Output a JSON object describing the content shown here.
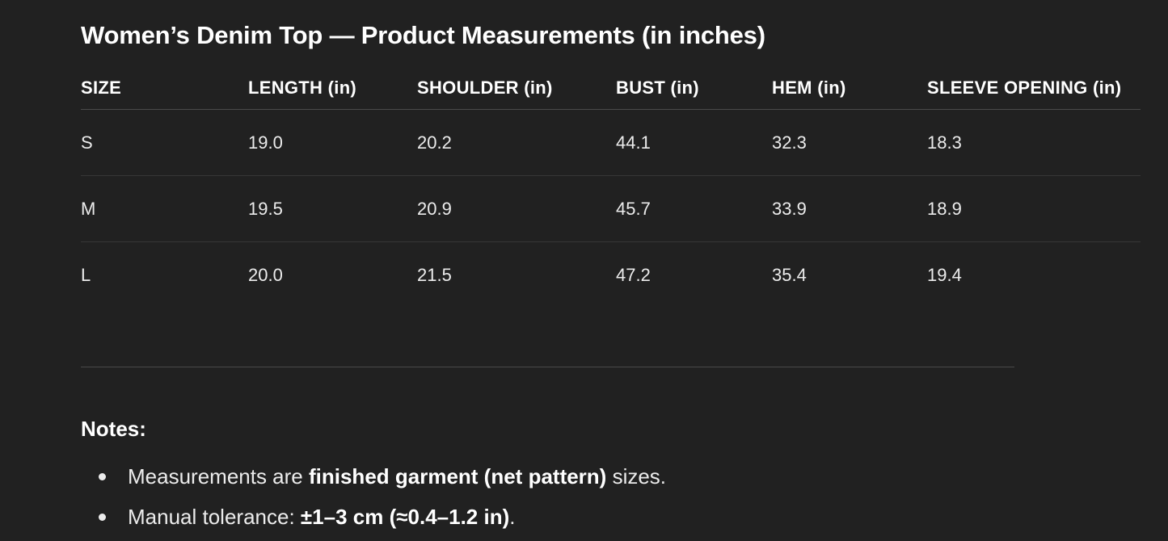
{
  "title": "Women’s Denim Top — Product Measurements (in inches)",
  "table": {
    "headers": [
      "SIZE",
      "LENGTH (in)",
      "SHOULDER (in)",
      "BUST (in)",
      "HEM (in)",
      "SLEEVE OPENING (in)"
    ],
    "rows": [
      [
        "S",
        "19.0",
        "20.2",
        "44.1",
        "32.3",
        "18.3"
      ],
      [
        "M",
        "19.5",
        "20.9",
        "45.7",
        "33.9",
        "18.9"
      ],
      [
        "L",
        "20.0",
        "21.5",
        "47.2",
        "35.4",
        "19.4"
      ]
    ]
  },
  "notes": {
    "heading": "Notes:",
    "items": [
      {
        "pre": "Measurements are ",
        "bold": "finished garment (net pattern)",
        "post": " sizes."
      },
      {
        "pre": "Manual tolerance: ",
        "bold": "±1–3 cm (≈0.4–1.2 in)",
        "post": "."
      }
    ]
  }
}
